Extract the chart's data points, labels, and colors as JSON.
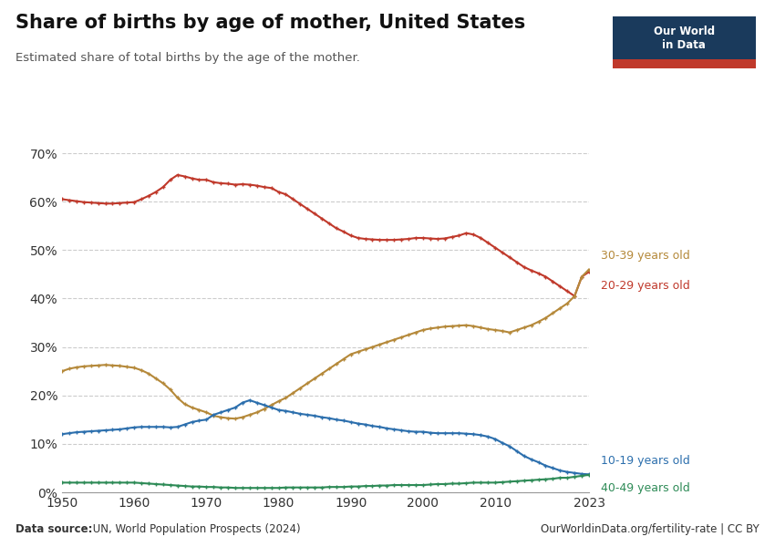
{
  "title": "Share of births by age of mother, United States",
  "subtitle": "Estimated share of total births by the age of the mother.",
  "source_bold": "Data source:",
  "source_rest": " UN, World Population Prospects (2024)",
  "url": "OurWorldinData.org/fertility-rate | CC BY",
  "years": [
    1950,
    1951,
    1952,
    1953,
    1954,
    1955,
    1956,
    1957,
    1958,
    1959,
    1960,
    1961,
    1962,
    1963,
    1964,
    1965,
    1966,
    1967,
    1968,
    1969,
    1970,
    1971,
    1972,
    1973,
    1974,
    1975,
    1976,
    1977,
    1978,
    1979,
    1980,
    1981,
    1982,
    1983,
    1984,
    1985,
    1986,
    1987,
    1988,
    1989,
    1990,
    1991,
    1992,
    1993,
    1994,
    1995,
    1996,
    1997,
    1998,
    1999,
    2000,
    2001,
    2002,
    2003,
    2004,
    2005,
    2006,
    2007,
    2008,
    2009,
    2010,
    2011,
    2012,
    2013,
    2014,
    2015,
    2016,
    2017,
    2018,
    2019,
    2020,
    2021,
    2022,
    2023
  ],
  "age_20_29": [
    60.5,
    60.3,
    60.1,
    59.9,
    59.8,
    59.7,
    59.6,
    59.6,
    59.7,
    59.8,
    59.9,
    60.5,
    61.2,
    62.0,
    63.0,
    64.5,
    65.5,
    65.2,
    64.8,
    64.5,
    64.5,
    64.0,
    63.8,
    63.7,
    63.5,
    63.6,
    63.5,
    63.3,
    63.0,
    62.8,
    62.0,
    61.5,
    60.5,
    59.5,
    58.5,
    57.5,
    56.5,
    55.5,
    54.5,
    53.8,
    53.0,
    52.5,
    52.3,
    52.2,
    52.1,
    52.1,
    52.1,
    52.2,
    52.3,
    52.5,
    52.5,
    52.4,
    52.3,
    52.4,
    52.7,
    53.0,
    53.5,
    53.2,
    52.5,
    51.5,
    50.5,
    49.5,
    48.5,
    47.5,
    46.5,
    45.8,
    45.2,
    44.5,
    43.5,
    42.5,
    41.5,
    40.5,
    44.5,
    45.5
  ],
  "age_30_39": [
    25.0,
    25.5,
    25.8,
    26.0,
    26.1,
    26.2,
    26.3,
    26.2,
    26.1,
    25.9,
    25.7,
    25.2,
    24.5,
    23.5,
    22.5,
    21.2,
    19.5,
    18.2,
    17.5,
    17.0,
    16.5,
    15.8,
    15.5,
    15.3,
    15.2,
    15.5,
    16.0,
    16.5,
    17.2,
    18.0,
    18.8,
    19.5,
    20.5,
    21.5,
    22.5,
    23.5,
    24.5,
    25.5,
    26.5,
    27.5,
    28.5,
    29.0,
    29.5,
    30.0,
    30.5,
    31.0,
    31.5,
    32.0,
    32.5,
    33.0,
    33.5,
    33.8,
    34.0,
    34.2,
    34.3,
    34.4,
    34.5,
    34.3,
    34.0,
    33.7,
    33.5,
    33.3,
    33.0,
    33.5,
    34.0,
    34.5,
    35.2,
    36.0,
    37.0,
    38.0,
    39.0,
    40.5,
    44.5,
    46.0
  ],
  "age_10_19": [
    12.0,
    12.2,
    12.4,
    12.5,
    12.6,
    12.7,
    12.8,
    12.9,
    13.0,
    13.2,
    13.4,
    13.5,
    13.5,
    13.5,
    13.5,
    13.4,
    13.5,
    14.0,
    14.5,
    14.8,
    15.0,
    16.0,
    16.5,
    17.0,
    17.5,
    18.5,
    19.0,
    18.5,
    18.0,
    17.5,
    17.0,
    16.8,
    16.5,
    16.2,
    16.0,
    15.8,
    15.5,
    15.3,
    15.0,
    14.8,
    14.5,
    14.2,
    14.0,
    13.7,
    13.5,
    13.2,
    13.0,
    12.8,
    12.6,
    12.5,
    12.5,
    12.3,
    12.2,
    12.2,
    12.2,
    12.2,
    12.1,
    12.0,
    11.8,
    11.5,
    11.0,
    10.2,
    9.5,
    8.5,
    7.5,
    6.8,
    6.2,
    5.5,
    5.0,
    4.5,
    4.2,
    4.0,
    3.8,
    3.7
  ],
  "age_40_49": [
    2.0,
    2.0,
    2.0,
    2.0,
    2.0,
    2.0,
    2.0,
    2.0,
    2.0,
    2.0,
    2.0,
    1.9,
    1.8,
    1.7,
    1.6,
    1.5,
    1.4,
    1.3,
    1.2,
    1.2,
    1.1,
    1.1,
    1.0,
    1.0,
    0.9,
    0.9,
    0.9,
    0.9,
    0.9,
    0.9,
    0.9,
    1.0,
    1.0,
    1.0,
    1.0,
    1.0,
    1.0,
    1.1,
    1.1,
    1.1,
    1.2,
    1.2,
    1.3,
    1.3,
    1.4,
    1.4,
    1.5,
    1.5,
    1.5,
    1.5,
    1.5,
    1.6,
    1.7,
    1.7,
    1.8,
    1.8,
    1.9,
    2.0,
    2.0,
    2.0,
    2.0,
    2.1,
    2.2,
    2.3,
    2.4,
    2.5,
    2.6,
    2.7,
    2.8,
    3.0,
    3.0,
    3.2,
    3.4,
    3.6
  ],
  "color_20_29": "#c0392b",
  "color_30_39": "#b5893a",
  "color_10_19": "#2c6fad",
  "color_40_49": "#2e8b57",
  "ylim": [
    0,
    70
  ],
  "yticks": [
    0,
    10,
    20,
    30,
    40,
    50,
    60,
    70
  ],
  "xlim": [
    1950,
    2023
  ],
  "xticks": [
    1950,
    1960,
    1970,
    1980,
    1990,
    2000,
    2010,
    2023
  ],
  "background_color": "#ffffff",
  "owid_box_color": "#1a3a5c",
  "owid_red": "#c0392b"
}
